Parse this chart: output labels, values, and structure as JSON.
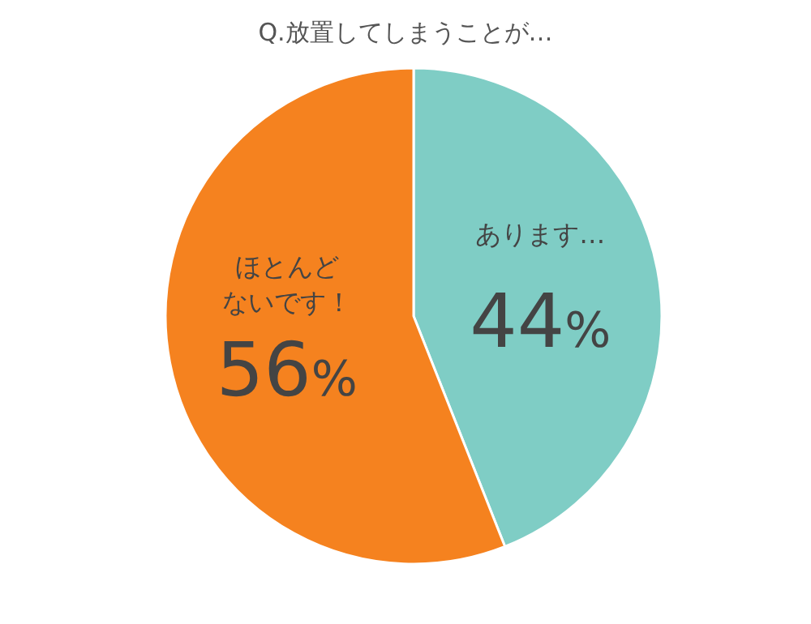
{
  "chart_data": {
    "type": "pie",
    "title": "Q.放置してしまうことが…",
    "categories": [
      "あります…",
      "ほとんどないです！"
    ],
    "values": [
      44,
      56
    ],
    "colors": [
      "#7fcdc5",
      "#f5821f"
    ],
    "value_labels": [
      "44%",
      "56%"
    ]
  }
}
